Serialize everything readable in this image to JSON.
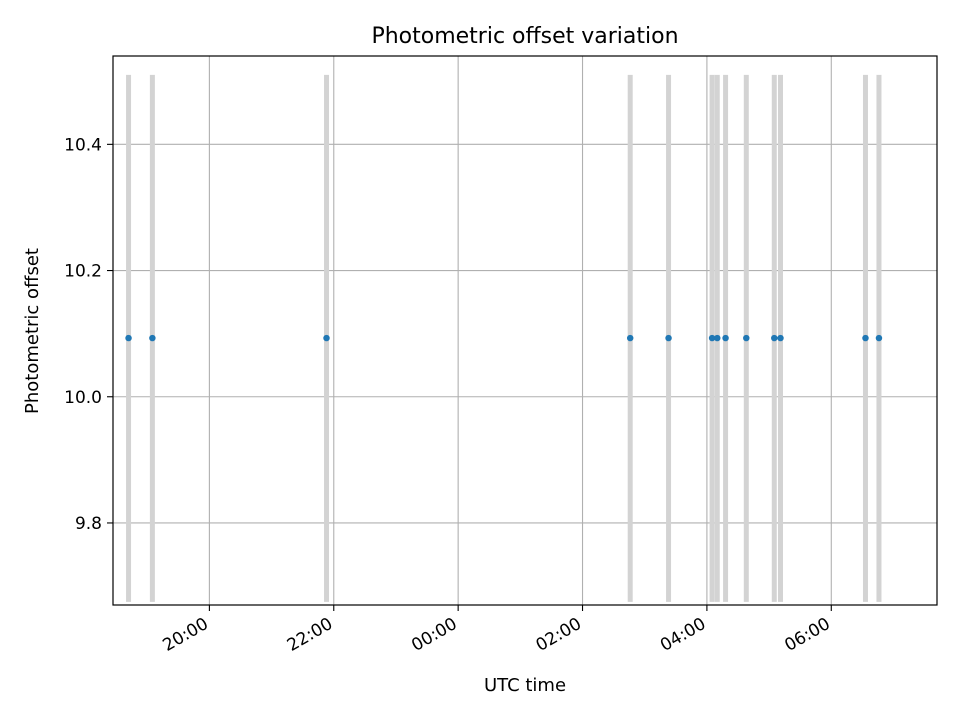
{
  "chart_data": {
    "type": "scatter",
    "title": "Photometric offset variation",
    "xlabel": "UTC time",
    "ylabel": "Photometric offset",
    "x_ticks": [
      "20:00",
      "22:00",
      "00:00",
      "02:00",
      "04:00",
      "06:00"
    ],
    "y_ticks": [
      "9.8",
      "10.0",
      "10.2",
      "10.4"
    ],
    "xlim": [
      "18:27",
      "07:42"
    ],
    "ylim": [
      9.67,
      10.54
    ],
    "grid": true,
    "errorbar_range": [
      9.675,
      10.51
    ],
    "series": [
      {
        "x": [
          "18:42",
          "19:05",
          "21:53",
          "02:46",
          "03:23",
          "04:05",
          "04:10",
          "04:18",
          "04:38",
          "05:05",
          "05:11",
          "06:33",
          "06:46"
        ],
        "y": [
          10.093,
          10.093,
          10.093,
          10.093,
          10.093,
          10.093,
          10.093,
          10.093,
          10.093,
          10.093,
          10.093,
          10.093,
          10.093
        ],
        "color": "#1f77b4",
        "errorbar_color": "#d3d3d3"
      }
    ]
  }
}
